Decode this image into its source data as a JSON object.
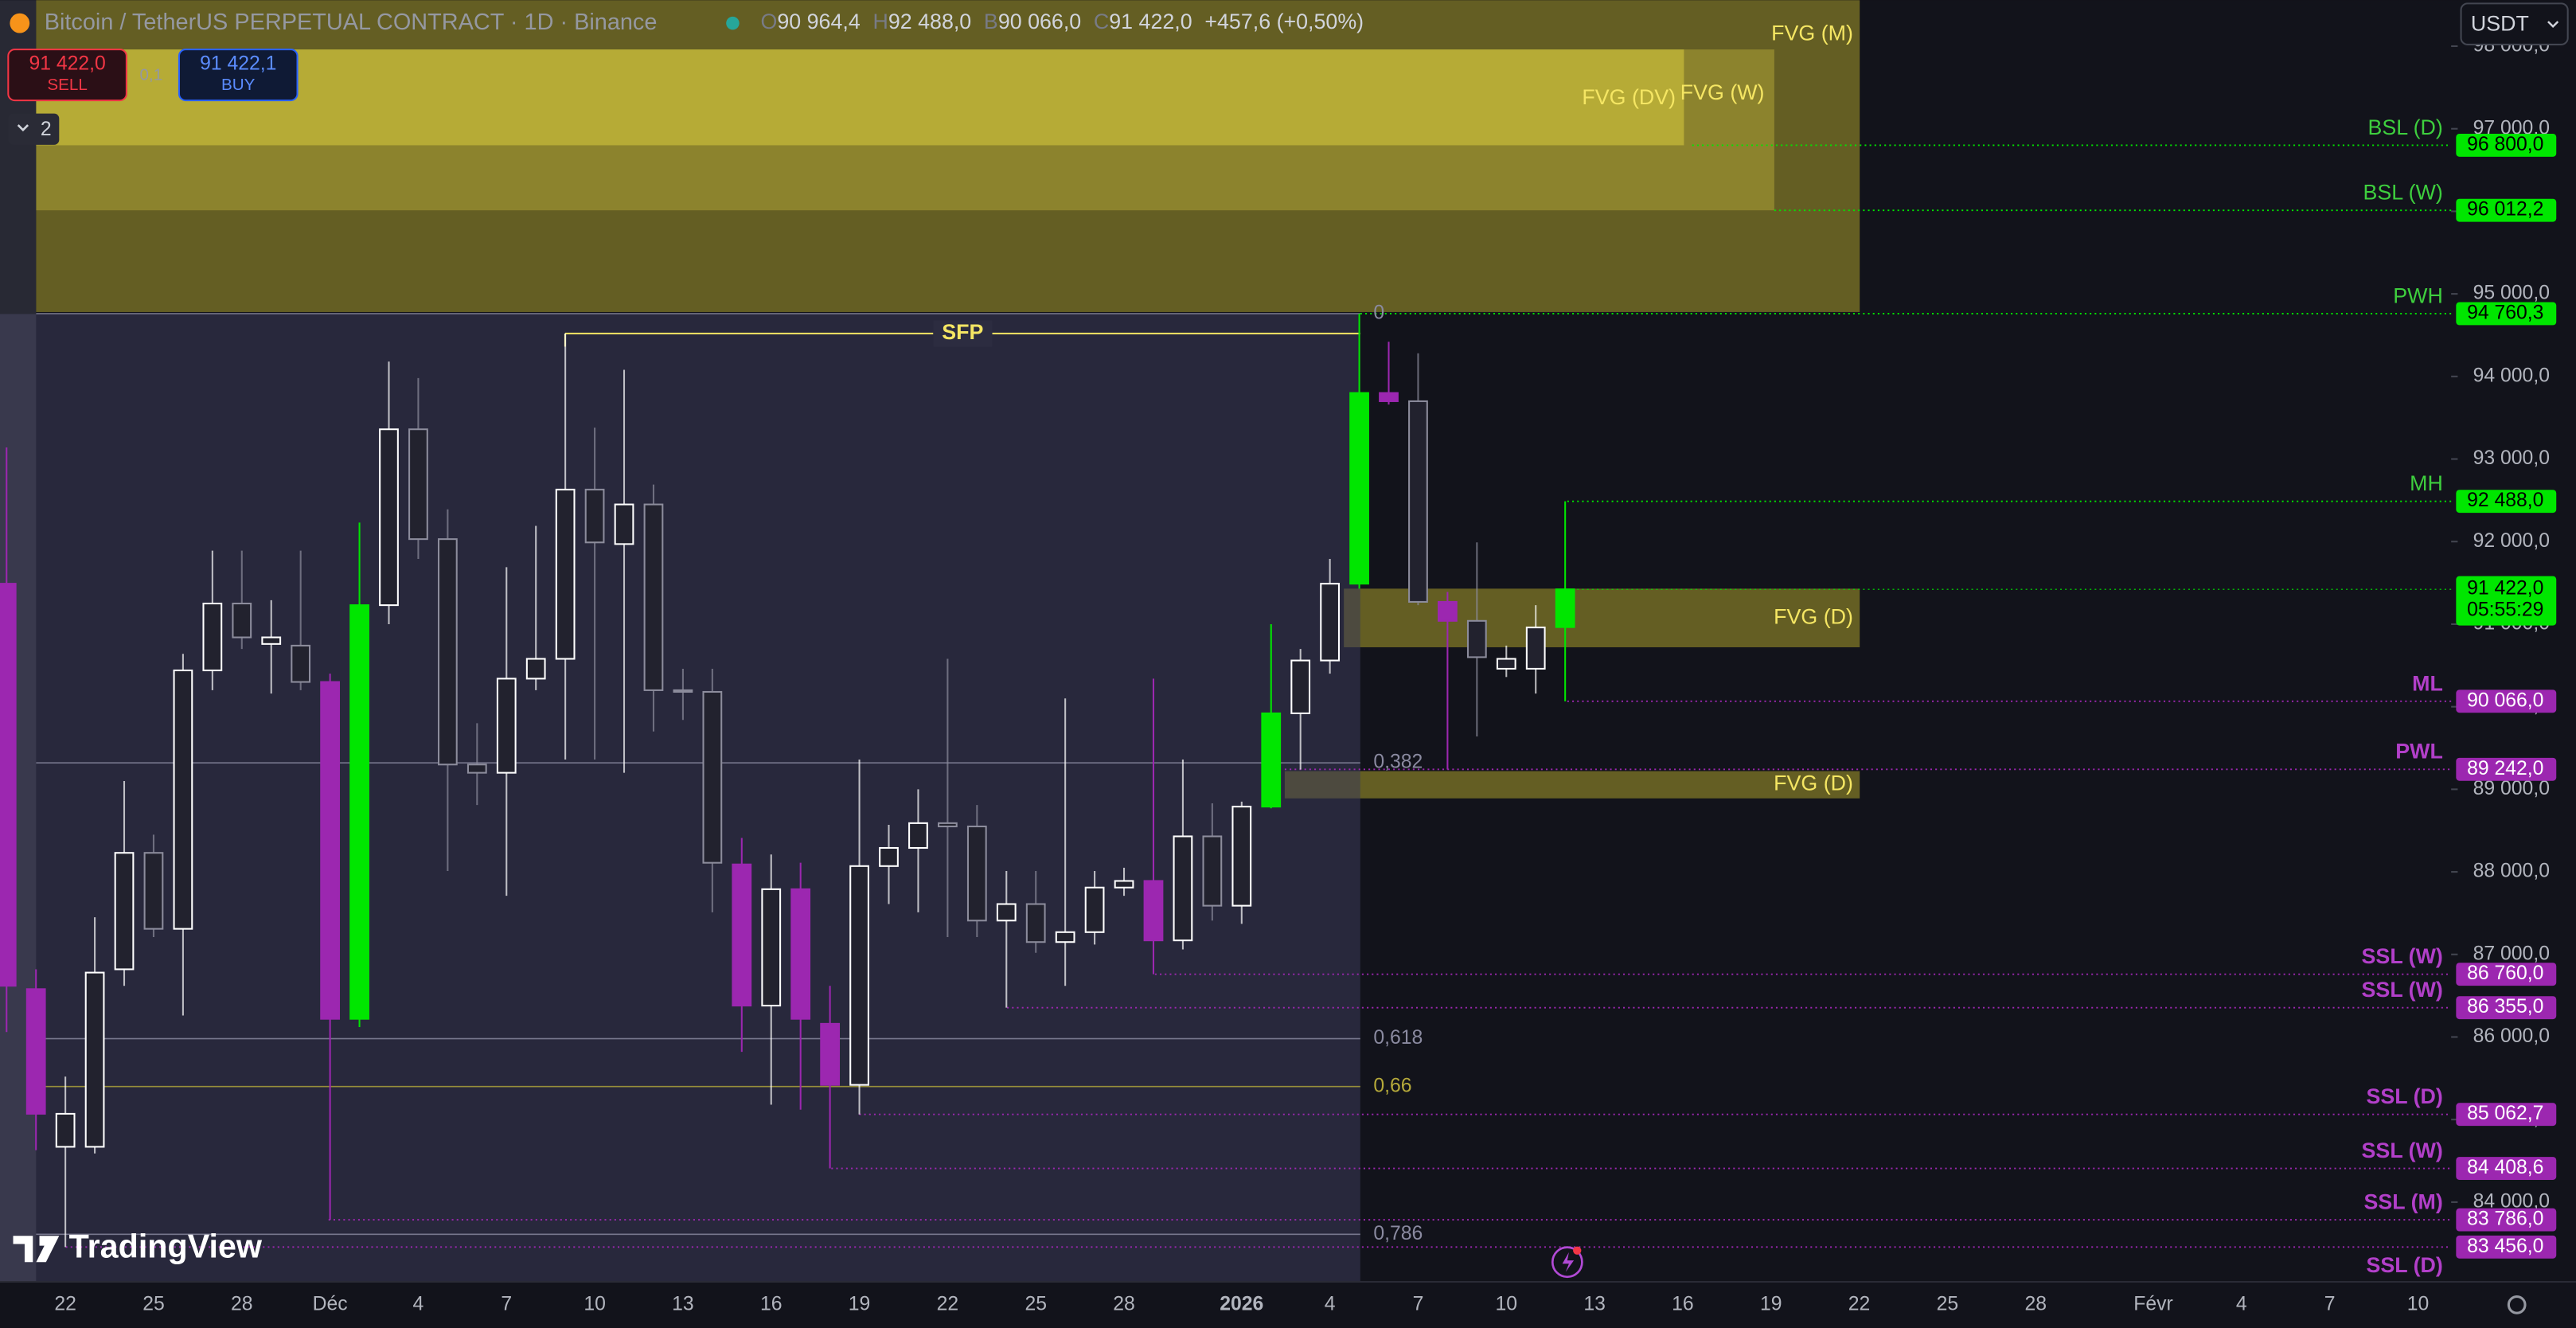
{
  "chart_data": {
    "type": "candlestick",
    "header": {
      "title": "Bitcoin / TetherUS PERPETUAL CONTRACT · 1D · Binance",
      "o": "O",
      "open": "90 964,4",
      "h": "H",
      "high": "92 488,0",
      "b": "B",
      "low": "90 066,0",
      "c": "C",
      "close": "91 422,0",
      "change": "+457,6 (+0,50%)"
    },
    "trade": {
      "sell_price": "91 422,0",
      "sell": "SELL",
      "spread": "0,1",
      "buy_price": "91 422,1",
      "buy": "BUY"
    },
    "indicator_count": "2",
    "currency": "USDT",
    "logo": "TradingView",
    "ylim": [
      83035,
      98557
    ],
    "yticks": [
      {
        "value": 98000,
        "label": "98 000,0"
      },
      {
        "value": 97000,
        "label": "97 000,0"
      },
      {
        "value": 96000,
        "label": "96 000,0"
      },
      {
        "value": 95000,
        "label": "95 000,0"
      },
      {
        "value": 94000,
        "label": "94 000,0"
      },
      {
        "value": 93000,
        "label": "93 000,0"
      },
      {
        "value": 92000,
        "label": "92 000,0"
      },
      {
        "value": 91000,
        "label": "91 000,0"
      },
      {
        "value": 90000,
        "label": "90 000,0"
      },
      {
        "value": 89000,
        "label": "89 000,0"
      },
      {
        "value": 88000,
        "label": "88 000,0"
      },
      {
        "value": 87000,
        "label": "87 000,0"
      },
      {
        "value": 86000,
        "label": "86 000,0"
      },
      {
        "value": 85000,
        "label": "85 000,0"
      },
      {
        "value": 84000,
        "label": "84 000,0"
      }
    ],
    "categories": [
      null,
      null,
      "22",
      null,
      null,
      "25",
      null,
      null,
      "28",
      null,
      null,
      "Déc",
      null,
      null,
      "4",
      null,
      null,
      "7",
      null,
      null,
      "10",
      null,
      null,
      "13",
      null,
      null,
      "16",
      null,
      null,
      "19",
      null,
      null,
      "22",
      null,
      null,
      "25",
      null,
      null,
      "28",
      null,
      null,
      null,
      "2026",
      null,
      null,
      "4",
      null,
      null,
      "7",
      null,
      null,
      "10",
      null,
      null,
      "13",
      null,
      null,
      "16",
      null,
      null,
      "19",
      null,
      null,
      "22",
      null,
      null,
      "25",
      null,
      null,
      "28",
      null,
      null,
      null,
      "Févr",
      null,
      null,
      "4",
      null,
      null,
      "7",
      null,
      null,
      "10",
      null
    ],
    "candles": {
      "open": [
        91490,
        86580,
        84670,
        84670,
        86820,
        88230,
        87310,
        90440,
        91250,
        90760,
        90740,
        90300,
        86220,
        91230,
        93360,
        92030,
        89300,
        89200,
        90340,
        90580,
        92630,
        91970,
        92450,
        90200,
        90180,
        88090,
        86380,
        87790,
        86160,
        85420,
        88070,
        88290,
        88590,
        88550,
        87410,
        87610,
        87150,
        87270,
        87810,
        87890,
        87170,
        88430,
        87590,
        88790,
        89920,
        90560,
        91490,
        93800,
        93700,
        91270,
        91040,
        90460,
        90460,
        90964.4,
        null,
        null,
        null,
        null,
        null,
        null,
        null,
        null,
        null,
        null,
        null,
        null,
        null,
        null,
        null,
        null,
        null,
        null,
        null,
        null,
        null,
        null,
        null,
        null,
        null,
        null,
        null,
        null,
        null,
        null
      ],
      "high": [
        93140,
        86820,
        85520,
        87450,
        89100,
        88450,
        90640,
        91890,
        91890,
        91290,
        91890,
        90400,
        92230,
        94180,
        93980,
        92390,
        89800,
        91690,
        92190,
        94520,
        93380,
        94080,
        92690,
        90460,
        90460,
        88410,
        88210,
        88110,
        86620,
        89360,
        88570,
        89000,
        90580,
        88810,
        88010,
        88010,
        90100,
        88010,
        88050,
        90340,
        89360,
        88830,
        88850,
        91000,
        90700,
        91790,
        94760.3,
        94420,
        94280,
        91390,
        91990,
        90740,
        91230,
        92488,
        null,
        null,
        null,
        null,
        null,
        null,
        null,
        null,
        null,
        null,
        null,
        null,
        null,
        null,
        null,
        null,
        null,
        null,
        null,
        null,
        null,
        null,
        null,
        null,
        null,
        null,
        null,
        null,
        null,
        null
      ],
      "low": [
        86060,
        84630,
        83456,
        84590,
        86620,
        87210,
        86260,
        90200,
        90700,
        90160,
        90200,
        83786,
        86120,
        91000,
        91790,
        88010,
        88810,
        87710,
        90200,
        89360,
        89360,
        89200,
        89700,
        89840,
        87510,
        85820,
        85180,
        85120,
        84408.6,
        85062.7,
        87610,
        87510,
        87210,
        87210,
        86355,
        87020,
        86620,
        87120,
        87710,
        86760,
        87060,
        87410,
        87370,
        88770,
        89240,
        90400,
        91430,
        93660,
        91230,
        89240,
        89640,
        90360,
        90160,
        90066,
        null,
        null,
        null,
        null,
        null,
        null,
        null,
        null,
        null,
        null,
        null,
        null,
        null,
        null,
        null,
        null,
        null,
        null,
        null,
        null,
        null,
        null,
        null,
        null,
        null,
        null,
        null,
        null,
        null,
        null
      ],
      "close": [
        86620,
        85070,
        85070,
        86780,
        88230,
        87310,
        90440,
        91250,
        90840,
        90840,
        90300,
        86220,
        91230,
        93360,
        92030,
        89300,
        89200,
        90340,
        90580,
        92630,
        91990,
        92450,
        90200,
        90180,
        88110,
        86380,
        87790,
        86220,
        85420,
        88070,
        88290,
        88590,
        88550,
        87410,
        87610,
        87150,
        87270,
        87810,
        87890,
        87170,
        88430,
        87590,
        88790,
        89920,
        90560,
        91490,
        93800,
        93700,
        91270,
        91040,
        90600,
        90580,
        90960,
        91422,
        null,
        null,
        null,
        null,
        null,
        null,
        null,
        null,
        null,
        null,
        null,
        null,
        null,
        null,
        null,
        null,
        null,
        null,
        null,
        null,
        null,
        null,
        null,
        null,
        null,
        null,
        null,
        null,
        null,
        null
      ],
      "colors": [
        "#9c27b0",
        "#9c27b0",
        "#ffffff",
        "#ffffff",
        "#ffffff",
        "#8c8c9c",
        "#ffffff",
        "#ffffff",
        "#8c8c9c",
        "#ffffff",
        "#8c8c9c",
        "#9c27b0",
        "#00e600",
        "#ffffff",
        "#8c8c9c",
        "#8c8c9c",
        "#8c8c9c",
        "#ffffff",
        "#ffffff",
        "#ffffff",
        "#8c8c9c",
        "#ffffff",
        "#8c8c9c",
        "#8c8c9c",
        "#8c8c9c",
        "#9c27b0",
        "#ffffff",
        "#9c27b0",
        "#9c27b0",
        "#ffffff",
        "#ffffff",
        "#ffffff",
        "#8c8c9c",
        "#8c8c9c",
        "#ffffff",
        "#8c8c9c",
        "#ffffff",
        "#ffffff",
        "#ffffff",
        "#9c27b0",
        "#ffffff",
        "#8c8c9c",
        "#ffffff",
        "#00e600",
        "#ffffff",
        "#ffffff",
        "#00e600",
        "#9c27b0",
        "#8c8c9c",
        "#9c27b0",
        "#8c8c9c",
        "#ffffff",
        "#ffffff",
        "#00e600",
        null,
        null,
        null,
        null,
        null,
        null,
        null,
        null,
        null,
        null,
        null,
        null,
        null,
        null,
        null,
        null,
        null,
        null,
        null,
        null,
        null,
        null,
        null,
        null,
        null,
        null,
        null,
        null,
        null,
        null
      ]
    },
    "zones": [
      {
        "name": "FVG (M)",
        "range": [
          94780,
          98557
        ]
      },
      {
        "name": "FVG (W)",
        "range": [
          96012.2,
          97960
        ]
      },
      {
        "name": "FVG (DV)",
        "range": [
          96800,
          97960
        ]
      },
      {
        "name": "FVG (D)",
        "range": [
          90720,
          91430
        ]
      },
      {
        "name": "FVG (D)",
        "range": [
          88890,
          89220
        ]
      }
    ],
    "levels": [
      {
        "name": "BSL (D)",
        "value": 96800,
        "value_label": "96 800,0",
        "color": "#00e600"
      },
      {
        "name": "BSL (W)",
        "value": 96012.2,
        "value_label": "96 012,2",
        "color": "#00e600"
      },
      {
        "name": "PWH",
        "value": 94760.3,
        "value_label": "94 760,3",
        "color": "#00e600"
      },
      {
        "name": "MH",
        "value": 92488,
        "value_label": "92 488,0",
        "color": "#00e600"
      },
      {
        "name": "ML",
        "value": 90066,
        "value_label": "90 066,0",
        "color": "#9c27b0"
      },
      {
        "name": "PWL",
        "value": 89242,
        "value_label": "89 242,0",
        "color": "#9c27b0"
      },
      {
        "name": "SSL (W)",
        "value": 86760,
        "value_label": "86 760,0",
        "color": "#9c27b0"
      },
      {
        "name": "SSL (W)",
        "value": 86355,
        "value_label": "86 355,0",
        "color": "#9c27b0"
      },
      {
        "name": "SSL (D)",
        "value": 85062.7,
        "value_label": "85 062,7",
        "color": "#9c27b0"
      },
      {
        "name": "SSL (W)",
        "value": 84408.6,
        "value_label": "84 408,6",
        "color": "#9c27b0"
      },
      {
        "name": "SSL (M)",
        "value": 83786,
        "value_label": "83 786,0",
        "color": "#9c27b0"
      },
      {
        "name": "SSL (D)",
        "value": 83456,
        "value_label": "83 456,0",
        "color": "#9c27b0"
      }
    ],
    "fib": {
      "labels": [
        "0",
        "0,382",
        "0,618",
        "0,66",
        "0,786"
      ],
      "values": [
        94760.3,
        89320,
        85980,
        85400,
        83610
      ]
    },
    "sfp": {
      "label": "SFP",
      "value": 94520
    },
    "current": {
      "value": 91422,
      "value_label": "91 422,0",
      "countdown": "05:55:29"
    }
  }
}
